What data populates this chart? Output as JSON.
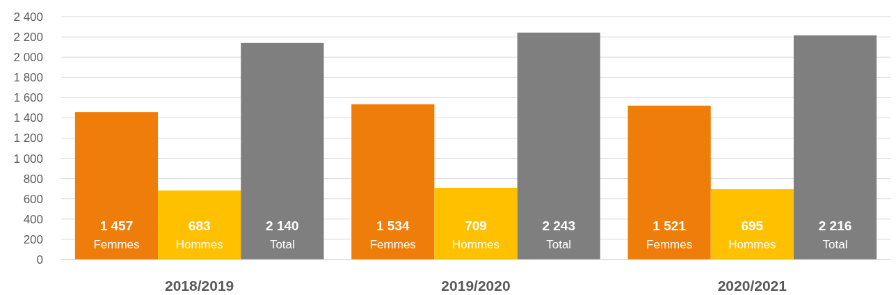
{
  "chart_data": {
    "type": "bar",
    "categories": [
      "2018/2019",
      "2019/2020",
      "2020/2021"
    ],
    "series": [
      {
        "name": "Femmes",
        "color": "#ef7d0a",
        "values": [
          1457,
          1534,
          1521
        ],
        "value_labels": [
          "1 457",
          "1 534",
          "1 521"
        ]
      },
      {
        "name": "Hommes",
        "color": "#ffc000",
        "values": [
          683,
          709,
          695
        ],
        "value_labels": [
          "683",
          "709",
          "695"
        ]
      },
      {
        "name": "Total",
        "color": "#7f7f7f",
        "values": [
          2140,
          2243,
          2216
        ],
        "value_labels": [
          "2 140",
          "2 243",
          "2 216"
        ]
      }
    ],
    "ylim": [
      0,
      2400
    ],
    "yticks": [
      0,
      {
        "value": 200,
        "label": "200"
      },
      {
        "value": 400,
        "label": "400"
      },
      {
        "value": 600,
        "label": "600"
      },
      {
        "value": 800,
        "label": "800"
      },
      {
        "value": 1000,
        "label": "1 000"
      },
      {
        "value": 1200,
        "label": "1 200"
      },
      {
        "value": 1400,
        "label": "1 400"
      },
      {
        "value": 1600,
        "label": "1 600"
      },
      {
        "value": 1800,
        "label": "1 800"
      },
      {
        "value": 2000,
        "label": "2 000"
      },
      {
        "value": 2200,
        "label": "2 200"
      },
      {
        "value": 2400,
        "label": "2 400"
      }
    ],
    "grid": "y"
  }
}
